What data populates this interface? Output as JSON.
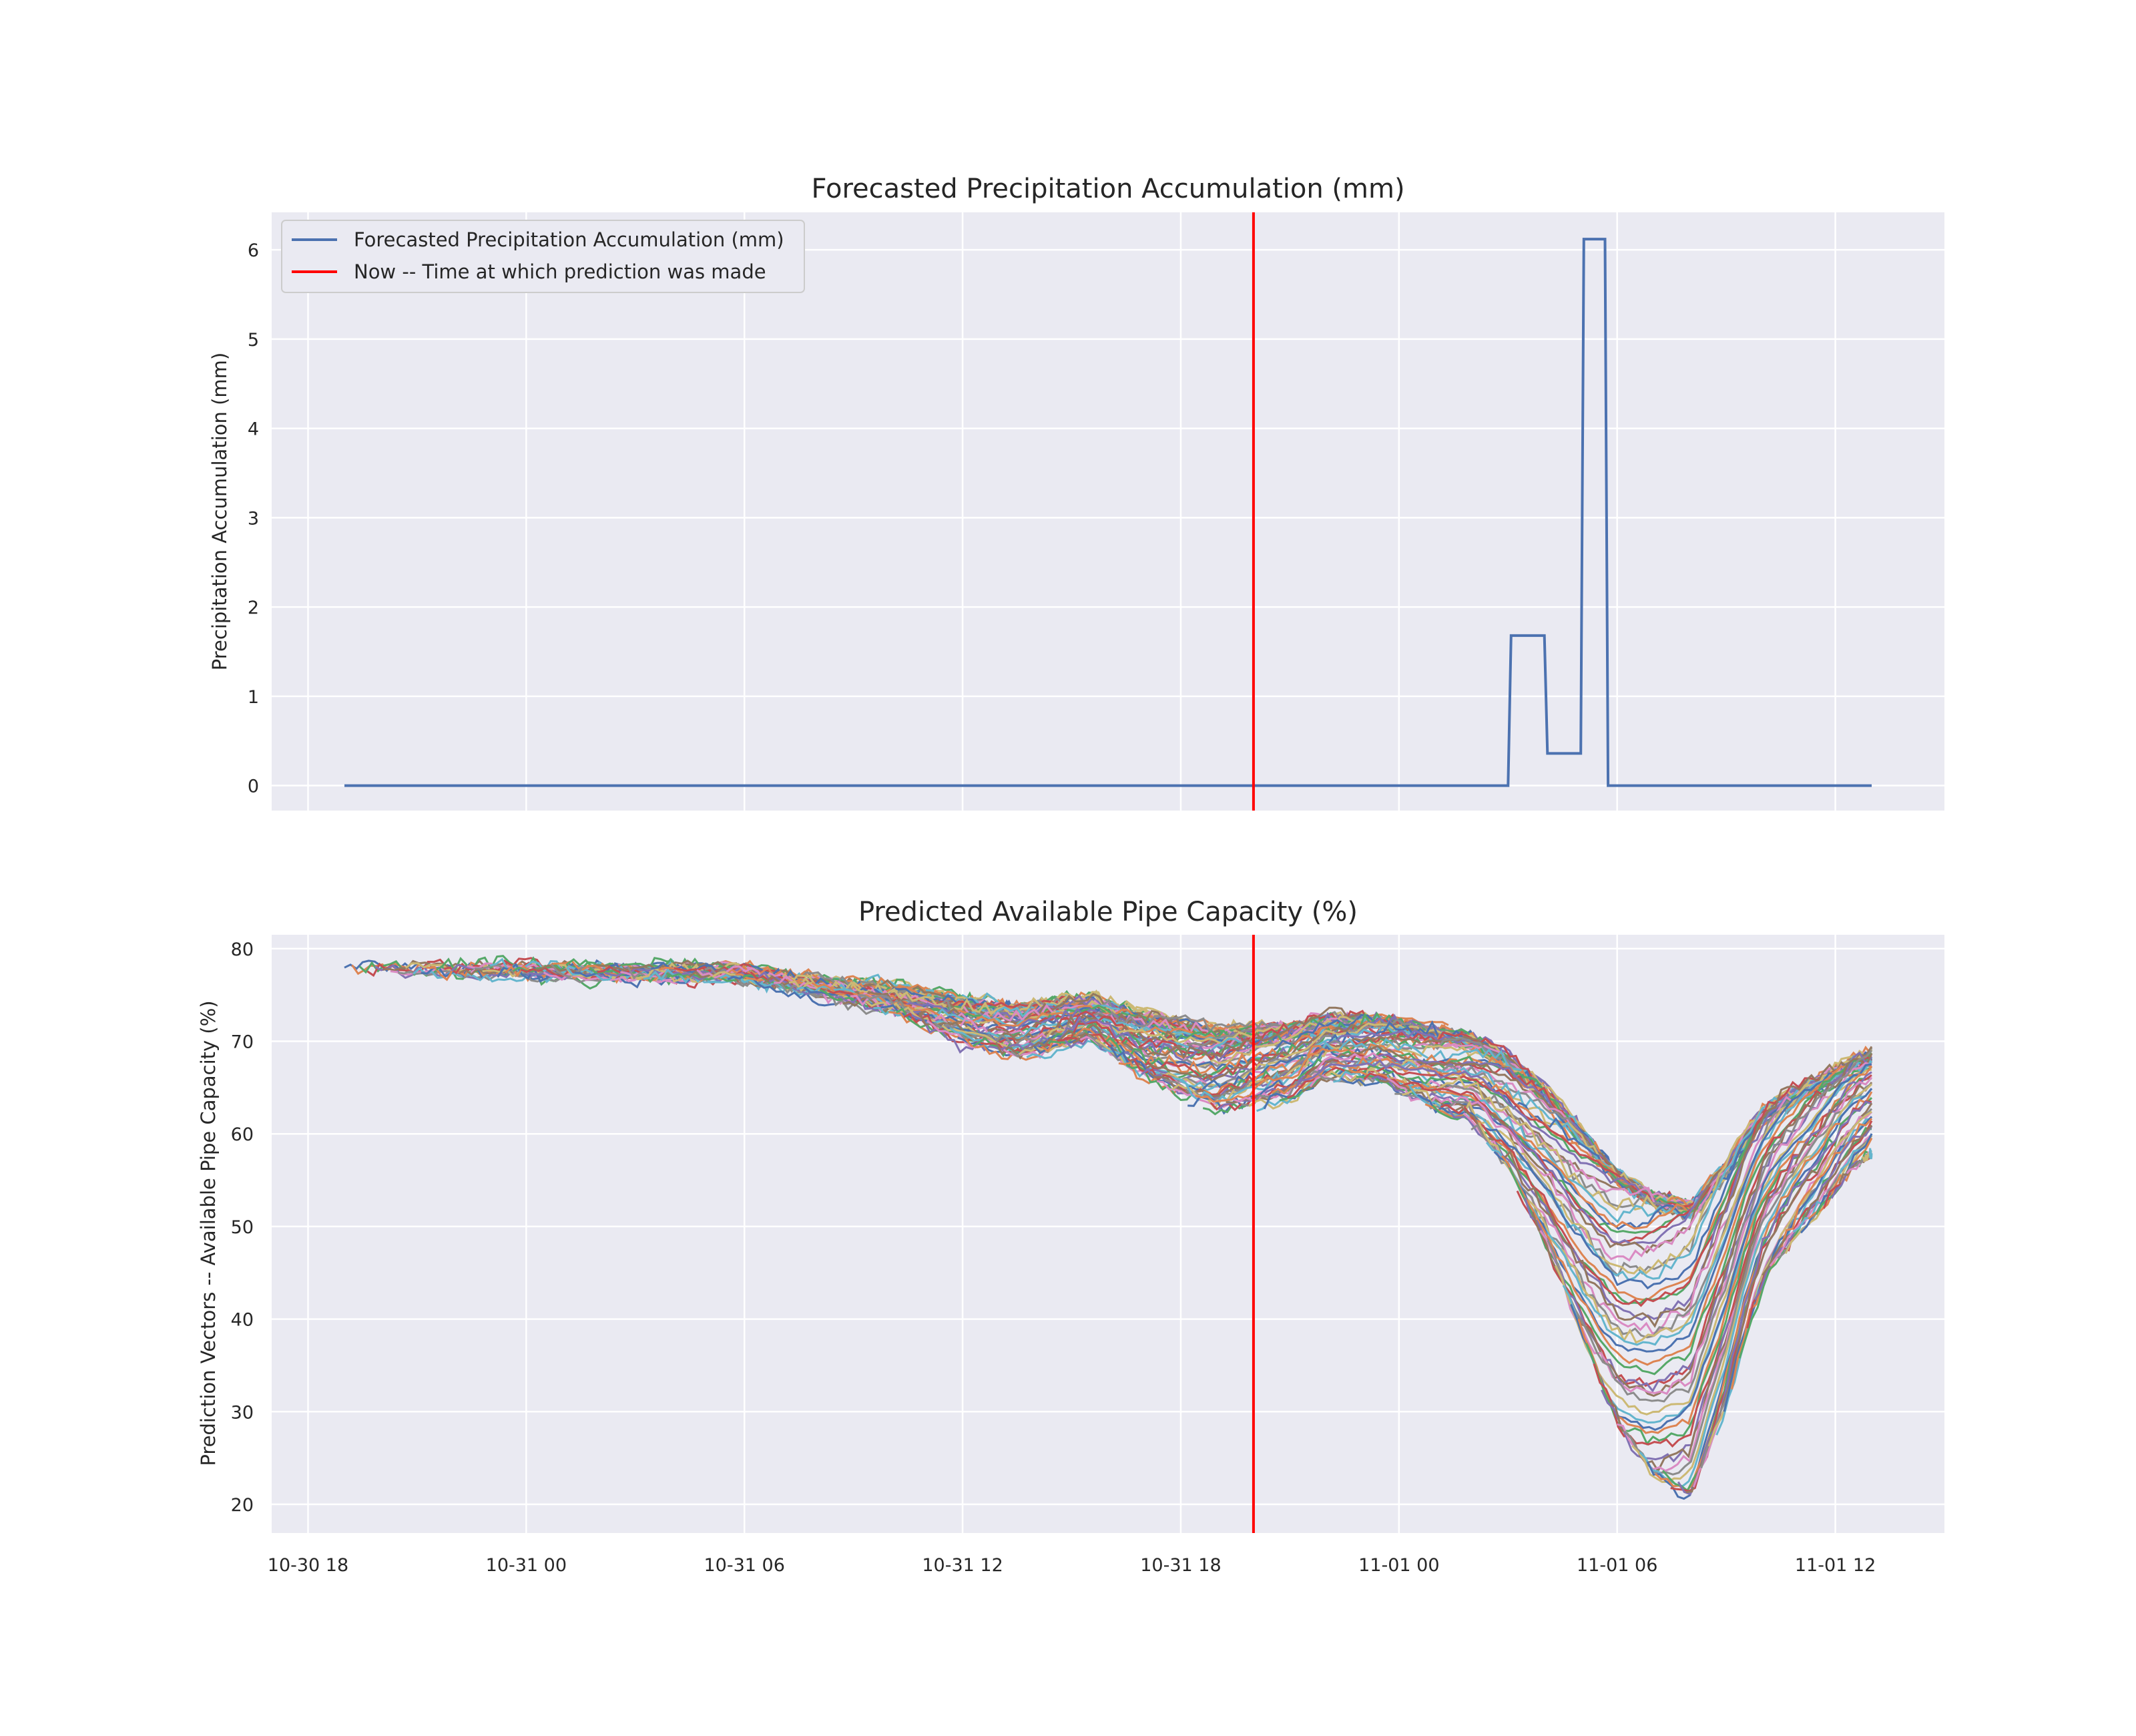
{
  "chart_data": [
    {
      "type": "line",
      "title": "Forecasted Precipitation Accumulation (mm)",
      "xlabel": "",
      "ylabel": "Precipitation Accumulation (mm)",
      "x_range": [
        "2021-10-30 17:00",
        "2021-11-01 15:00"
      ],
      "ylim": [
        -0.28,
        6.42
      ],
      "yticks": [
        0,
        1,
        2,
        3,
        4,
        5,
        6
      ],
      "grid": true,
      "legend": "upper left",
      "legend_entries": [
        {
          "label": "Forecasted Precipitation Accumulation (mm)",
          "color": "#4c72b0"
        },
        {
          "label": "Now -- Time at which prediction was made",
          "color": "#ff0000"
        }
      ],
      "series": [
        {
          "name": "Forecasted Precipitation Accumulation (mm)",
          "color": "#4c72b0",
          "points": [
            [
              "2021-10-30 19:00",
              0
            ],
            [
              "2021-11-01 03:00",
              0
            ],
            [
              "2021-11-01 03:05",
              1.68
            ],
            [
              "2021-11-01 04:00",
              1.68
            ],
            [
              "2021-11-01 04:05",
              0.36
            ],
            [
              "2021-11-01 05:00",
              0.36
            ],
            [
              "2021-11-01 05:05",
              6.12
            ],
            [
              "2021-11-01 05:40",
              6.12
            ],
            [
              "2021-11-01 05:45",
              0
            ],
            [
              "2021-11-01 13:00",
              0
            ]
          ]
        }
      ],
      "vline": {
        "name": "Now -- Time at which prediction was made",
        "x": "2021-10-31 20:00",
        "color": "#ff0000"
      }
    },
    {
      "type": "line",
      "title": "Predicted Available Pipe Capacity (%)",
      "xlabel": "",
      "ylabel": "Prediction Vectors -- Available Pipe Capacity (%)",
      "x_range": [
        "2021-10-30 17:00",
        "2021-11-01 15:00"
      ],
      "xticks": [
        "10-30 18",
        "10-31 00",
        "10-31 06",
        "10-31 12",
        "10-31 18",
        "11-01 00",
        "11-01 06",
        "11-01 12"
      ],
      "ylim": [
        16.9,
        81.5
      ],
      "yticks": [
        20,
        30,
        40,
        50,
        60,
        70,
        80
      ],
      "grid": true,
      "series_count": 200,
      "palette": [
        "#4c72b0",
        "#dd8452",
        "#55a868",
        "#c44e52",
        "#8172b3",
        "#937860",
        "#da8bc3",
        "#8c8c8c",
        "#ccb974",
        "#64b5cd"
      ],
      "forecast_horizon_hours": 17.5,
      "envelope": {
        "x": [
          "2021-10-30 19:00",
          "2021-10-31 06:00",
          "2021-10-31 10:00",
          "2021-10-31 12:00",
          "2021-10-31 13:30",
          "2021-10-31 15:30",
          "2021-10-31 17:00",
          "2021-10-31 19:00",
          "2021-10-31 20:00",
          "2021-10-31 21:00",
          "2021-10-31 22:00",
          "2021-10-31 23:30",
          "2021-11-01 01:00",
          "2021-11-01 02:00",
          "2021-11-01 03:00",
          "2021-11-01 04:00",
          "2021-11-01 05:00",
          "2021-11-01 06:00",
          "2021-11-01 07:00",
          "2021-11-01 08:00",
          "2021-11-01 08:30",
          "2021-11-01 09:00",
          "2021-11-01 09:30",
          "2021-11-01 10:00",
          "2021-11-01 10:30",
          "2021-11-01 11:00",
          "2021-11-01 11:30",
          "2021-11-01 12:00",
          "2021-11-01 12:30",
          "2021-11-01 13:00"
        ],
        "y": [
          76.8,
          76.3,
          72.5,
          69.5,
          67.5,
          69.5,
          65.5,
          62.0,
          62.5,
          63.0,
          65.5,
          65.0,
          62.0,
          60.5,
          55.5,
          48.0,
          38.0,
          28.0,
          22.5,
          20.0,
          25.0,
          30.0,
          37.0,
          43.0,
          46.0,
          48.5,
          50.5,
          53.0,
          55.5,
          56.8
        ]
      },
      "vline": {
        "name": "Now -- Time at which prediction was made",
        "x": "2021-10-31 20:00",
        "color": "#ff0000"
      }
    }
  ]
}
